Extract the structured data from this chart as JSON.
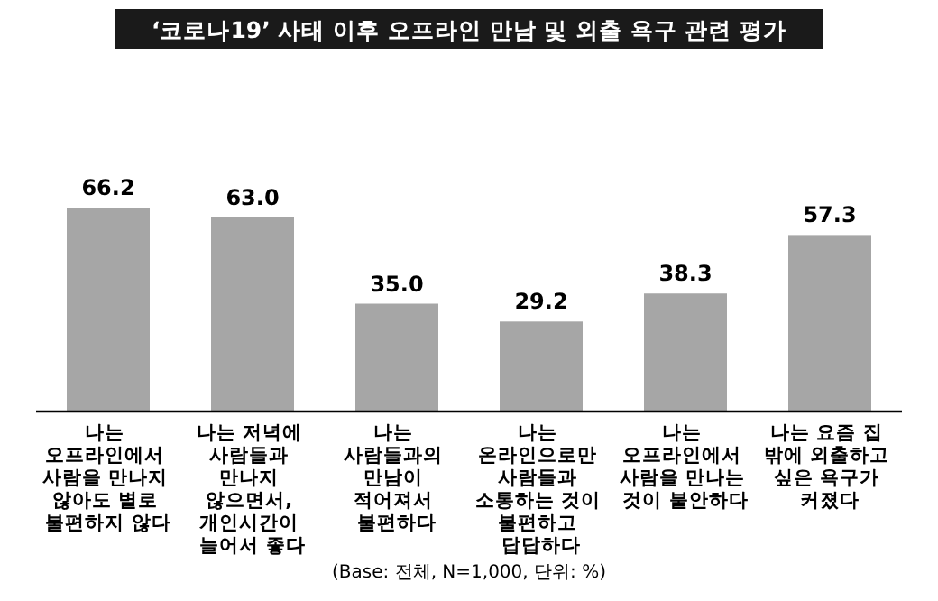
{
  "chart_data": {
    "type": "bar",
    "title": "‘코로나19’ 사태 이후 오프라인 만남 및 외출 욕구 관련 평가",
    "categories": [
      "나는 오프라인에서 사람을 만나지 않아도 별로 불편하지 않다",
      "나는 저녁에 사람들과 만나지 않으면서, 개인시간이 늘어서 좋다",
      "나는 사람들과의 만남이 적어져서 불편하다",
      "나는 온라인으로만 사람들과 소통하는 것이 불편하고 답답하다",
      "나는 오프라인에서 사람을 만나는 것이 불안하다",
      "나는 요즘 집 밖에 외출하고 싶은 욕구가 커졌다"
    ],
    "values": [
      66.2,
      63.0,
      35.0,
      29.2,
      38.3,
      57.3
    ],
    "value_labels": [
      "66.2",
      "63.0",
      "35.0",
      "29.2",
      "38.3",
      "57.3"
    ],
    "color": "#a6a6a6",
    "annotations": [
      "(Base: 전체, N=1,000, 단위: %)"
    ]
  }
}
